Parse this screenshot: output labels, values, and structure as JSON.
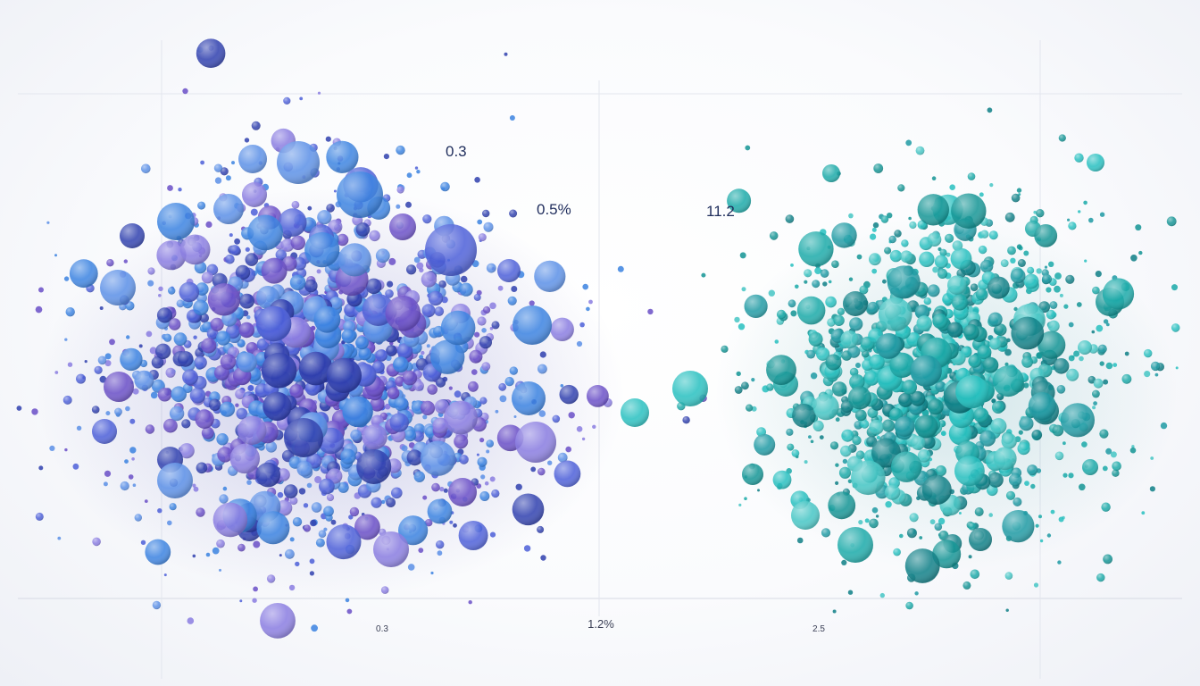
{
  "chart_data": {
    "type": "scatter",
    "title": "",
    "xlabel": "",
    "ylabel": "",
    "grid": true,
    "legend": "none",
    "series": [
      {
        "cluster": "left",
        "colors": [
          "#6a4fc7",
          "#4c5fd8",
          "#3b82e0",
          "#2f3fae",
          "#5a8fe6",
          "#8a7ce0"
        ]
      },
      {
        "cluster": "right",
        "colors": [
          "#1aa9a8",
          "#139494",
          "#27c0bf",
          "#0e7f86",
          "#1f9aa3",
          "#45c6c4"
        ]
      }
    ],
    "data_labels": [
      {
        "text": "0.3",
        "anchor": "left-cluster-upper-right"
      },
      {
        "text": "0.5%",
        "anchor": "left-cluster-right"
      },
      {
        "text": "11.2",
        "anchor": "right-cluster-upper-left"
      }
    ],
    "x_tick_labels": [
      "0.3",
      "1.2%",
      "2.5"
    ]
  }
}
